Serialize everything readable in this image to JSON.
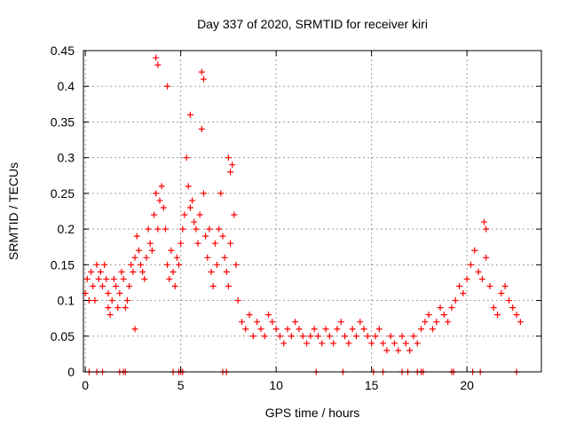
{
  "chart_data": {
    "type": "scatter",
    "title": "Day 337 of 2020, SRMTID for receiver kiri",
    "xlabel": "GPS time / hours",
    "ylabel": "SRMTID / TECUs",
    "xlim": [
      -0.1,
      23.9
    ],
    "ylim": [
      0,
      0.45
    ],
    "xticks": [
      0,
      5,
      10,
      15,
      20
    ],
    "yticks": [
      0,
      0.05,
      0.1,
      0.15,
      0.2,
      0.25,
      0.3,
      0.35,
      0.4,
      0.45
    ],
    "xtick_labels": [
      "0",
      "5",
      "10",
      "15",
      "20"
    ],
    "ytick_labels": [
      "0",
      "0.05",
      "0.1",
      "0.15",
      "0.2",
      "0.25",
      "0.3",
      "0.35",
      "0.4",
      "0.45"
    ],
    "grid": true,
    "marker": "+",
    "series": [
      {
        "color": "#ff0000",
        "x": [
          0.0,
          0.1,
          0.2,
          0.3,
          0.4,
          0.5,
          0.6,
          0.7,
          0.8,
          0.9,
          1.0,
          1.1,
          1.2,
          1.3,
          1.4,
          1.5,
          1.6,
          1.7,
          1.8,
          1.9,
          2.0,
          2.1,
          2.2,
          2.3,
          2.4,
          2.5,
          2.6,
          2.7,
          2.8,
          2.9,
          3.0,
          3.1,
          3.2,
          3.3,
          3.4,
          3.5,
          3.6,
          3.7,
          3.8,
          3.9,
          4.0,
          4.1,
          4.2,
          4.3,
          4.4,
          4.5,
          4.6,
          4.7,
          4.8,
          4.9,
          5.0,
          5.1,
          5.2,
          5.3,
          5.4,
          5.5,
          5.6,
          5.7,
          5.8,
          5.9,
          6.0,
          6.1,
          6.2,
          6.3,
          6.4,
          6.5,
          6.6,
          6.7,
          6.8,
          6.9,
          7.0,
          7.1,
          7.2,
          7.3,
          7.4,
          7.5,
          7.6,
          7.7,
          7.8,
          7.9,
          8.0,
          8.2,
          8.4,
          8.6,
          8.8,
          9.0,
          9.2,
          9.4,
          9.6,
          9.8,
          10.0,
          10.2,
          10.4,
          10.6,
          10.8,
          11.0,
          11.2,
          11.4,
          11.6,
          11.8,
          12.0,
          12.2,
          12.4,
          12.6,
          12.8,
          13.0,
          13.2,
          13.4,
          13.6,
          13.8,
          14.0,
          14.2,
          14.4,
          14.6,
          14.8,
          15.0,
          15.2,
          15.4,
          15.6,
          15.8,
          16.0,
          16.2,
          16.4,
          16.6,
          16.8,
          17.0,
          17.2,
          17.4,
          17.6,
          17.8,
          18.0,
          18.2,
          18.4,
          18.6,
          18.8,
          19.0,
          19.2,
          19.4,
          19.6,
          19.8,
          20.0,
          20.2,
          20.4,
          20.6,
          20.8,
          21.0,
          21.2,
          21.4,
          21.6,
          21.8,
          22.0,
          22.2,
          22.4,
          22.6,
          22.8,
          3.7,
          3.8,
          6.1,
          6.2,
          4.3,
          5.5,
          7.5,
          7.6,
          1.2,
          2.6,
          20.9,
          21.0,
          0.2,
          0.6,
          0.9,
          1.8,
          2.0,
          2.1,
          4.6,
          4.9,
          5.0,
          5.1,
          7.2,
          7.4,
          12.1,
          13.5,
          15.1,
          15.6,
          16.6,
          16.9,
          17.4,
          17.6,
          17.7,
          19.2,
          19.3,
          20.3,
          20.7,
          22.6
        ],
        "y": [
          0.11,
          0.13,
          0.1,
          0.14,
          0.12,
          0.1,
          0.15,
          0.13,
          0.14,
          0.12,
          0.15,
          0.13,
          0.11,
          0.08,
          0.1,
          0.13,
          0.12,
          0.09,
          0.11,
          0.14,
          0.13,
          0.09,
          0.1,
          0.12,
          0.15,
          0.14,
          0.16,
          0.19,
          0.17,
          0.15,
          0.14,
          0.13,
          0.16,
          0.2,
          0.18,
          0.17,
          0.22,
          0.25,
          0.2,
          0.24,
          0.26,
          0.23,
          0.2,
          0.15,
          0.13,
          0.17,
          0.14,
          0.12,
          0.16,
          0.15,
          0.18,
          0.2,
          0.22,
          0.3,
          0.26,
          0.23,
          0.24,
          0.21,
          0.2,
          0.18,
          0.22,
          0.34,
          0.25,
          0.19,
          0.16,
          0.2,
          0.14,
          0.12,
          0.18,
          0.15,
          0.2,
          0.25,
          0.19,
          0.16,
          0.14,
          0.12,
          0.18,
          0.29,
          0.22,
          0.15,
          0.1,
          0.07,
          0.06,
          0.08,
          0.05,
          0.07,
          0.06,
          0.05,
          0.08,
          0.07,
          0.06,
          0.05,
          0.04,
          0.06,
          0.05,
          0.07,
          0.06,
          0.05,
          0.04,
          0.05,
          0.06,
          0.05,
          0.04,
          0.06,
          0.05,
          0.04,
          0.06,
          0.07,
          0.05,
          0.04,
          0.06,
          0.05,
          0.07,
          0.06,
          0.05,
          0.04,
          0.05,
          0.06,
          0.04,
          0.03,
          0.05,
          0.04,
          0.03,
          0.05,
          0.04,
          0.03,
          0.05,
          0.04,
          0.06,
          0.07,
          0.08,
          0.06,
          0.07,
          0.09,
          0.08,
          0.07,
          0.09,
          0.1,
          0.12,
          0.11,
          0.13,
          0.15,
          0.17,
          0.14,
          0.13,
          0.16,
          0.12,
          0.09,
          0.08,
          0.11,
          0.12,
          0.1,
          0.09,
          0.08,
          0.07,
          0.44,
          0.43,
          0.42,
          0.41,
          0.4,
          0.36,
          0.3,
          0.28,
          0.09,
          0.06,
          0.21,
          0.2,
          0,
          0,
          0,
          0,
          0,
          0,
          0,
          0,
          0,
          0,
          0,
          0,
          0,
          0,
          0,
          0,
          0,
          0,
          0,
          0,
          0,
          0,
          0,
          0,
          0,
          0
        ]
      }
    ]
  }
}
